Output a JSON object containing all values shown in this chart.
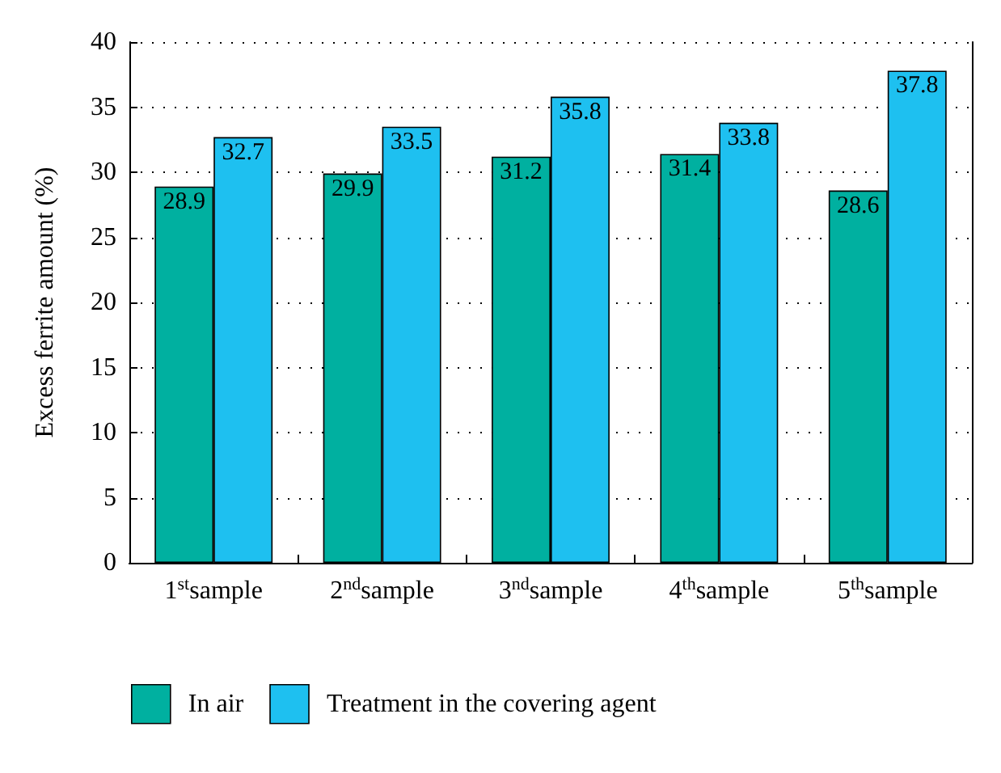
{
  "chart_data": {
    "type": "bar",
    "ylabel": "Excess ferrite amount (%)",
    "categories": [
      "1$^{st}$sample",
      "2$^{nd}$sample",
      "3$^{nd}$sample",
      "4$^{th}$sample",
      "5$^{th}$sample"
    ],
    "series": [
      {
        "name": "In air",
        "color": "#00b0a0",
        "values": [
          28.9,
          29.9,
          31.2,
          31.4,
          28.6
        ]
      },
      {
        "name": "Treatment in the covering agent",
        "color": "#1ec0f0",
        "values": [
          32.7,
          33.5,
          35.8,
          33.8,
          37.8
        ]
      }
    ],
    "ylim": [
      0,
      40
    ],
    "yticks": [
      0,
      5,
      10,
      15,
      20,
      25,
      30,
      35,
      40
    ],
    "grid": "y",
    "legend": "bottom left",
    "data_labels": true
  }
}
